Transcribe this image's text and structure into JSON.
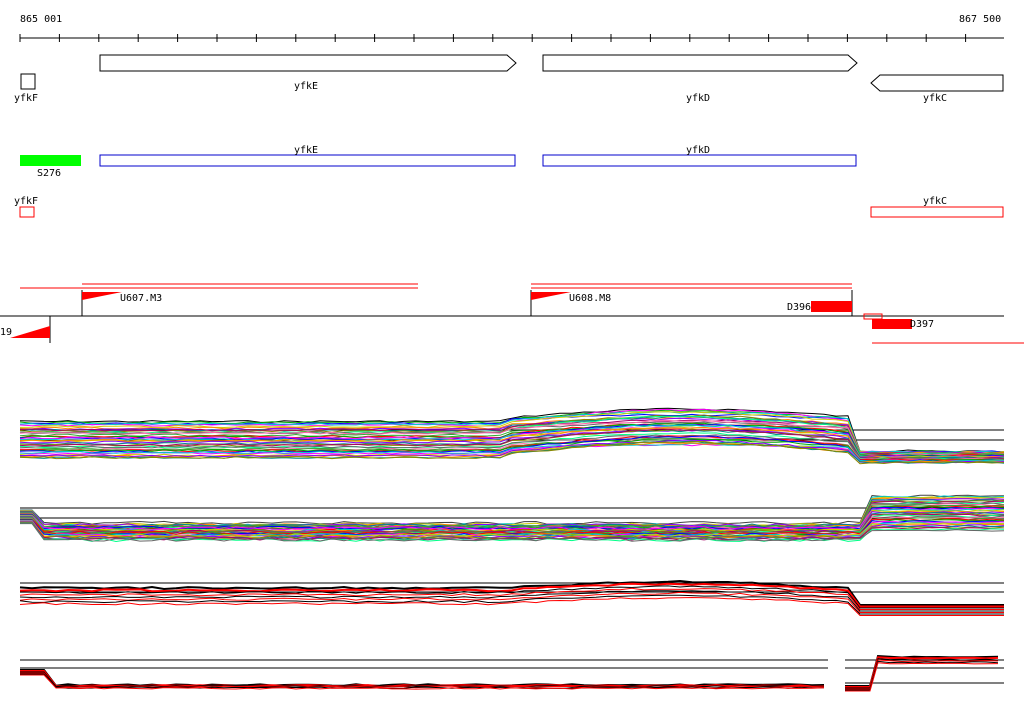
{
  "ruler": {
    "start_label": "865 001",
    "end_label": "867 500"
  },
  "genes_top": [
    {
      "label": "yfkF",
      "direction": "right"
    },
    {
      "label": "yfkE",
      "direction": "right"
    },
    {
      "label": "yfkD",
      "direction": "right"
    },
    {
      "label": "yfkC",
      "direction": "left"
    }
  ],
  "features": {
    "green_label": "S276",
    "blue_labels": [
      "yfkE",
      "yfkD"
    ],
    "red_outline_labels": [
      "yfkF",
      "yfkC"
    ]
  },
  "segments": {
    "labels": [
      "U607.M3",
      "U608.M8",
      "D396",
      "D397",
      "19"
    ]
  },
  "colors": {
    "arrow_outline": "#000000",
    "green": "#00ff00",
    "blue": "#0000cc",
    "red": "#ff0000",
    "black": "#000000",
    "track_palette": [
      "#ff0000",
      "#00aa00",
      "#0000ff",
      "#ff00ff",
      "#00cccc",
      "#cccc00",
      "#ff8800",
      "#8800ff",
      "#008888",
      "#888800",
      "#aa0066",
      "#00ff88",
      "#666666",
      "#ff66aa",
      "#33aa33"
    ]
  },
  "expression_panels": [
    {
      "name": "panel-1",
      "traces": 40
    },
    {
      "name": "panel-2",
      "traces": 40
    },
    {
      "name": "panel-3",
      "traces": 8
    },
    {
      "name": "panel-4",
      "traces": 6
    }
  ]
}
